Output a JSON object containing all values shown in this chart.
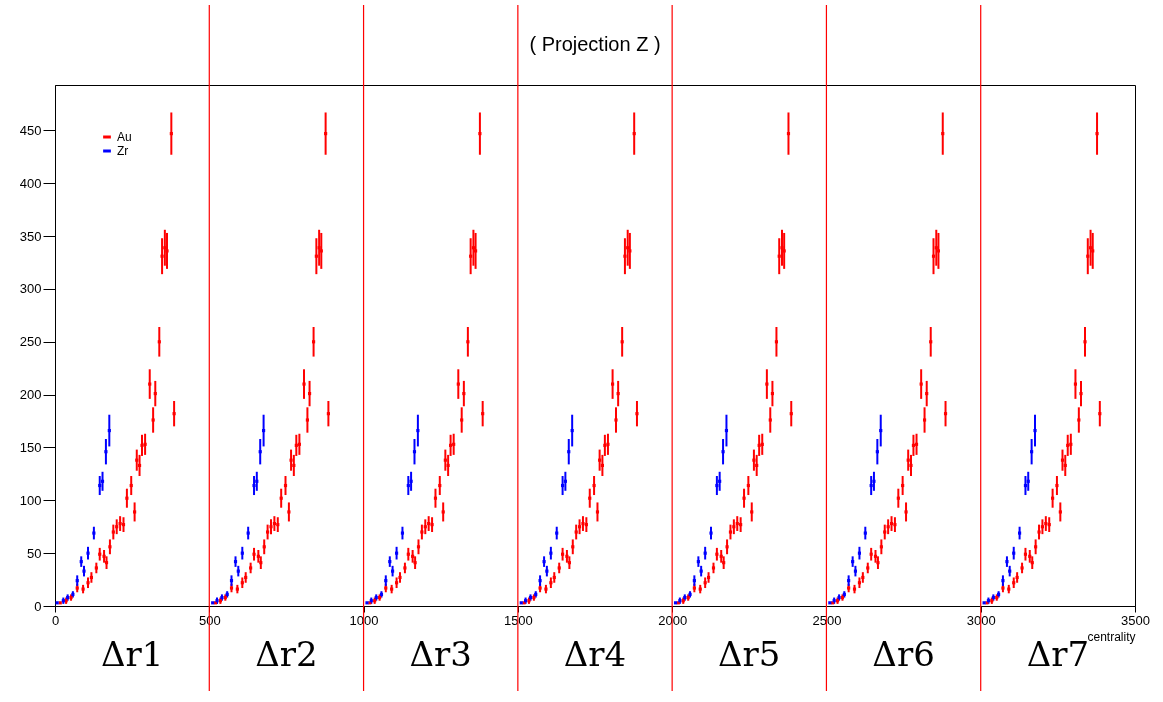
{
  "chart_data": {
    "type": "scatter",
    "title": "( Projection Z )",
    "xlabel": "centrality",
    "xlim": [
      0,
      3500
    ],
    "xticks": [
      0,
      500,
      1000,
      1500,
      2000,
      2500,
      3000,
      3500
    ],
    "ylim": [
      0,
      493
    ],
    "yticks": [
      0,
      50,
      100,
      150,
      200,
      250,
      300,
      350,
      400,
      450
    ],
    "legend": "top left",
    "marker": "square",
    "series": [
      {
        "name": "Au",
        "color": "#ff0000",
        "x": [
          17,
          36,
          52,
          72,
          91,
          107,
          118,
          134,
          145,
          159,
          167,
          178,
          189,
          200,
          211,
          222,
          233,
          247,
          258,
          265,
          274,
          282,
          292,
          307,
          318,
          325,
          338,
          347,
          356,
          363,
          377,
          386,
          520,
          536,
          552,
          572,
          591,
          607,
          618,
          634,
          645,
          659,
          667,
          678,
          689,
          700,
          711,
          722,
          733,
          747,
          758,
          765,
          774,
          782,
          792,
          807,
          818,
          825,
          838,
          847,
          856,
          863,
          877,
          886,
          1020,
          1036,
          1052,
          1072,
          1091,
          1107,
          1118,
          1134,
          1145,
          1159,
          1167,
          1178,
          1189,
          1200,
          1211,
          1222,
          1233,
          1247,
          1258,
          1265,
          1274,
          1282,
          1292,
          1307,
          1318,
          1325,
          1338,
          1347,
          1356,
          1363,
          1377,
          1386,
          1520,
          1536,
          1552,
          1572,
          1591,
          1607,
          1618,
          1634,
          1645,
          1659,
          1667,
          1678,
          1689,
          1700,
          1711,
          1722,
          1733,
          1747,
          1758,
          1765,
          1774,
          1782,
          1792,
          1807,
          1818,
          1825,
          1838,
          1847,
          1856,
          1863,
          1877,
          1886,
          2020,
          2036,
          2052,
          2072,
          2091,
          2107,
          2118,
          2134,
          2145,
          2159,
          2167,
          2178,
          2189,
          2200,
          2211,
          2222,
          2233,
          2247,
          2258,
          2265,
          2274,
          2282,
          2292,
          2307,
          2318,
          2325,
          2338,
          2347,
          2356,
          2363,
          2377,
          2386,
          2520,
          2536,
          2552,
          2572,
          2591,
          2607,
          2618,
          2634,
          2645,
          2659,
          2667,
          2678,
          2689,
          2700,
          2711,
          2722,
          2733,
          2747,
          2758,
          2765,
          2774,
          2782,
          2792,
          2807,
          2818,
          2825,
          2838,
          2847,
          2856,
          2863,
          2877,
          2886,
          3020,
          3036,
          3052,
          3072,
          3091,
          3107,
          3118,
          3134,
          3145,
          3159,
          3167,
          3178,
          3189,
          3200,
          3211,
          3222,
          3233,
          3247,
          3258,
          3265,
          3274,
          3282,
          3292,
          3307,
          3318,
          3325,
          3338,
          3347,
          3356,
          3363,
          3377,
          3386
        ],
        "values": [
          3,
          5,
          8,
          17,
          16,
          22,
          27,
          36,
          49,
          47,
          41,
          56,
          70,
          75,
          78,
          77,
          102,
          114,
          89,
          138,
          133,
          152,
          153,
          210,
          176,
          201,
          250,
          331,
          339,
          336,
          447,
          182,
          3,
          5,
          8,
          17,
          16,
          22,
          27,
          36,
          49,
          47,
          41,
          56,
          70,
          75,
          78,
          77,
          102,
          114,
          89,
          138,
          133,
          152,
          153,
          210,
          176,
          201,
          250,
          331,
          339,
          336,
          447,
          182,
          3,
          5,
          8,
          17,
          16,
          22,
          27,
          36,
          49,
          47,
          41,
          56,
          70,
          75,
          78,
          77,
          102,
          114,
          89,
          138,
          133,
          152,
          153,
          210,
          176,
          201,
          250,
          331,
          339,
          336,
          447,
          182,
          3,
          5,
          8,
          17,
          16,
          22,
          27,
          36,
          49,
          47,
          41,
          56,
          70,
          75,
          78,
          77,
          102,
          114,
          89,
          138,
          133,
          152,
          153,
          210,
          176,
          201,
          250,
          331,
          339,
          336,
          447,
          182,
          3,
          5,
          8,
          17,
          16,
          22,
          27,
          36,
          49,
          47,
          41,
          56,
          70,
          75,
          78,
          77,
          102,
          114,
          89,
          138,
          133,
          152,
          153,
          210,
          176,
          201,
          250,
          331,
          339,
          336,
          447,
          182,
          3,
          5,
          8,
          17,
          16,
          22,
          27,
          36,
          49,
          47,
          41,
          56,
          70,
          75,
          78,
          77,
          102,
          114,
          89,
          138,
          133,
          152,
          153,
          210,
          176,
          201,
          250,
          331,
          339,
          336,
          447,
          182,
          3,
          5,
          8,
          17,
          16,
          22,
          27,
          36,
          49,
          47,
          41,
          56,
          70,
          75,
          78,
          77,
          102,
          114,
          89,
          138,
          133,
          152,
          153,
          210,
          176,
          201,
          250,
          331,
          339,
          336,
          447,
          182
        ],
        "errors": [
          null,
          3,
          3,
          4,
          4,
          5,
          5,
          5,
          6,
          6,
          6,
          7,
          7,
          7,
          7,
          7,
          9,
          9,
          9,
          10,
          10,
          10,
          10,
          14,
          12,
          12,
          14,
          17,
          17,
          17,
          20,
          12,
          null,
          3,
          3,
          4,
          4,
          5,
          5,
          5,
          6,
          6,
          6,
          7,
          7,
          7,
          7,
          7,
          9,
          9,
          9,
          10,
          10,
          10,
          10,
          14,
          12,
          12,
          14,
          17,
          17,
          17,
          20,
          12,
          null,
          3,
          3,
          4,
          4,
          5,
          5,
          5,
          6,
          6,
          6,
          7,
          7,
          7,
          7,
          7,
          9,
          9,
          9,
          10,
          10,
          10,
          10,
          14,
          12,
          12,
          14,
          17,
          17,
          17,
          20,
          12,
          null,
          3,
          3,
          4,
          4,
          5,
          5,
          5,
          6,
          6,
          6,
          7,
          7,
          7,
          7,
          7,
          9,
          9,
          9,
          10,
          10,
          10,
          10,
          14,
          12,
          12,
          14,
          17,
          17,
          17,
          20,
          12,
          null,
          3,
          3,
          4,
          4,
          5,
          5,
          5,
          6,
          6,
          6,
          7,
          7,
          7,
          7,
          7,
          9,
          9,
          9,
          10,
          10,
          10,
          10,
          14,
          12,
          12,
          14,
          17,
          17,
          17,
          20,
          12,
          null,
          3,
          3,
          4,
          4,
          5,
          5,
          5,
          6,
          6,
          6,
          7,
          7,
          7,
          7,
          7,
          9,
          9,
          9,
          10,
          10,
          10,
          10,
          14,
          12,
          12,
          14,
          17,
          17,
          17,
          20,
          12,
          null,
          3,
          3,
          4,
          4,
          5,
          5,
          5,
          6,
          6,
          6,
          7,
          7,
          7,
          7,
          7,
          9,
          9,
          9,
          10,
          10,
          10,
          10,
          14,
          12,
          12,
          14,
          17,
          17,
          17,
          20,
          12
        ]
      },
      {
        "name": "Zr",
        "color": "#0000ff",
        "x": [
          7,
          27,
          41,
          58,
          72,
          85,
          94,
          107,
          126,
          145,
          154,
          165,
          176,
          511,
          525,
          541,
          558,
          572,
          585,
          594,
          607,
          626,
          645,
          654,
          665,
          676,
          1011,
          1025,
          1041,
          1058,
          1072,
          1085,
          1094,
          1107,
          1126,
          1145,
          1154,
          1165,
          1176,
          1511,
          1525,
          1541,
          1558,
          1572,
          1585,
          1594,
          1607,
          1626,
          1645,
          1654,
          1665,
          1676,
          2011,
          2025,
          2041,
          2058,
          2072,
          2085,
          2094,
          2107,
          2126,
          2145,
          2154,
          2165,
          2176,
          2511,
          2525,
          2541,
          2558,
          2572,
          2585,
          2594,
          2607,
          2626,
          2645,
          2654,
          2665,
          2676,
          3011,
          3025,
          3041,
          3058,
          3072,
          3085,
          3094,
          3107,
          3126,
          3145,
          3154,
          3165,
          3176
        ],
        "values": [
          3,
          5,
          8,
          11,
          24,
          42,
          33,
          50,
          69,
          114,
          118,
          146,
          166,
          3,
          5,
          8,
          11,
          24,
          42,
          33,
          50,
          69,
          114,
          118,
          146,
          166,
          3,
          5,
          8,
          11,
          24,
          42,
          33,
          50,
          69,
          114,
          118,
          146,
          166,
          3,
          5,
          8,
          11,
          24,
          42,
          33,
          50,
          69,
          114,
          118,
          146,
          166,
          3,
          5,
          8,
          11,
          24,
          42,
          33,
          50,
          69,
          114,
          118,
          146,
          166,
          3,
          5,
          8,
          11,
          24,
          42,
          33,
          50,
          69,
          114,
          118,
          146,
          166,
          3,
          5,
          8,
          11,
          24,
          42,
          33,
          50,
          69,
          114,
          118,
          146,
          166
        ],
        "errors": [
          null,
          3,
          3,
          3,
          5,
          5,
          5,
          6,
          6,
          9,
          9,
          12,
          15,
          null,
          3,
          3,
          3,
          5,
          5,
          5,
          6,
          6,
          9,
          9,
          12,
          15,
          null,
          3,
          3,
          3,
          5,
          5,
          5,
          6,
          6,
          9,
          9,
          12,
          15,
          null,
          3,
          3,
          3,
          5,
          5,
          5,
          6,
          6,
          9,
          9,
          12,
          15,
          null,
          3,
          3,
          3,
          5,
          5,
          5,
          6,
          6,
          9,
          9,
          12,
          15,
          null,
          3,
          3,
          3,
          5,
          5,
          5,
          6,
          6,
          9,
          9,
          12,
          15,
          null,
          3,
          3,
          3,
          5,
          5,
          5,
          6,
          6,
          9,
          9,
          12,
          15
        ]
      }
    ],
    "ref_lines": [
      {
        "axis": "x",
        "value": 500,
        "color": "#ff0000"
      },
      {
        "axis": "x",
        "value": 1000,
        "color": "#ff0000"
      },
      {
        "axis": "x",
        "value": 1500,
        "color": "#ff0000"
      },
      {
        "axis": "x",
        "value": 2000,
        "color": "#ff0000"
      },
      {
        "axis": "x",
        "value": 2500,
        "color": "#ff0000"
      },
      {
        "axis": "x",
        "value": 3000,
        "color": "#ff0000"
      }
    ],
    "annotations": [
      "Δr1",
      "Δr2",
      "Δr3",
      "Δr4",
      "Δr5",
      "Δr6",
      "Δr7"
    ]
  }
}
